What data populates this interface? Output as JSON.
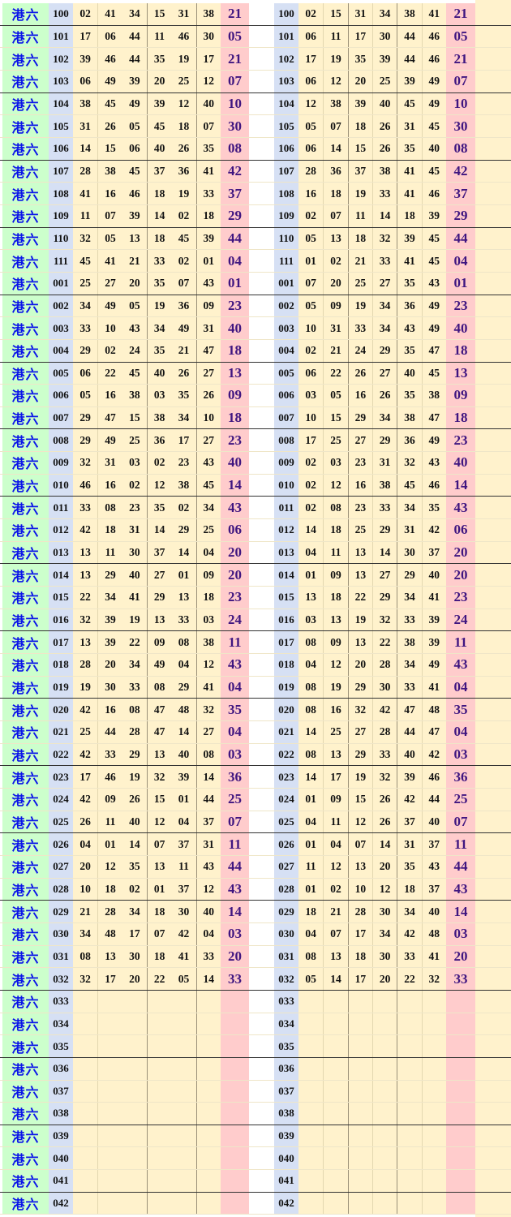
{
  "label": "港六",
  "colors": {
    "label_bg": "#ccffcc",
    "label_text": "#0a14e8",
    "issue_bg": "#d6e0f4",
    "numbers_bg": "#fff2cc",
    "special_bg": "#ffcccc",
    "special_text": "#3f1580"
  },
  "rows": [
    {
      "issue": "100",
      "nums": [
        "02",
        "41",
        "34",
        "15",
        "31",
        "38"
      ],
      "sorted": [
        "02",
        "15",
        "31",
        "34",
        "38",
        "41"
      ],
      "special": "21"
    },
    {
      "issue": "101",
      "nums": [
        "17",
        "06",
        "44",
        "11",
        "46",
        "30"
      ],
      "sorted": [
        "06",
        "11",
        "17",
        "30",
        "44",
        "46"
      ],
      "special": "05"
    },
    {
      "issue": "102",
      "nums": [
        "39",
        "46",
        "44",
        "35",
        "19",
        "17"
      ],
      "sorted": [
        "17",
        "19",
        "35",
        "39",
        "44",
        "46"
      ],
      "special": "21"
    },
    {
      "issue": "103",
      "nums": [
        "06",
        "49",
        "39",
        "20",
        "25",
        "12"
      ],
      "sorted": [
        "06",
        "12",
        "20",
        "25",
        "39",
        "49"
      ],
      "special": "07"
    },
    {
      "issue": "104",
      "nums": [
        "38",
        "45",
        "49",
        "39",
        "12",
        "40"
      ],
      "sorted": [
        "12",
        "38",
        "39",
        "40",
        "45",
        "49"
      ],
      "special": "10"
    },
    {
      "issue": "105",
      "nums": [
        "31",
        "26",
        "05",
        "45",
        "18",
        "07"
      ],
      "sorted": [
        "05",
        "07",
        "18",
        "26",
        "31",
        "45"
      ],
      "special": "30"
    },
    {
      "issue": "106",
      "nums": [
        "14",
        "15",
        "06",
        "40",
        "26",
        "35"
      ],
      "sorted": [
        "06",
        "14",
        "15",
        "26",
        "35",
        "40"
      ],
      "special": "08"
    },
    {
      "issue": "107",
      "nums": [
        "28",
        "38",
        "45",
        "37",
        "36",
        "41"
      ],
      "sorted": [
        "28",
        "36",
        "37",
        "38",
        "41",
        "45"
      ],
      "special": "42"
    },
    {
      "issue": "108",
      "nums": [
        "41",
        "16",
        "46",
        "18",
        "19",
        "33"
      ],
      "sorted": [
        "16",
        "18",
        "19",
        "33",
        "41",
        "46"
      ],
      "special": "37"
    },
    {
      "issue": "109",
      "nums": [
        "11",
        "07",
        "39",
        "14",
        "02",
        "18"
      ],
      "sorted": [
        "02",
        "07",
        "11",
        "14",
        "18",
        "39"
      ],
      "special": "29"
    },
    {
      "issue": "110",
      "nums": [
        "32",
        "05",
        "13",
        "18",
        "45",
        "39"
      ],
      "sorted": [
        "05",
        "13",
        "18",
        "32",
        "39",
        "45"
      ],
      "special": "44"
    },
    {
      "issue": "111",
      "nums": [
        "45",
        "41",
        "21",
        "33",
        "02",
        "01"
      ],
      "sorted": [
        "01",
        "02",
        "21",
        "33",
        "41",
        "45"
      ],
      "special": "04"
    },
    {
      "issue": "001",
      "nums": [
        "25",
        "27",
        "20",
        "35",
        "07",
        "43"
      ],
      "sorted": [
        "07",
        "20",
        "25",
        "27",
        "35",
        "43"
      ],
      "special": "01"
    },
    {
      "issue": "002",
      "nums": [
        "34",
        "49",
        "05",
        "19",
        "36",
        "09"
      ],
      "sorted": [
        "05",
        "09",
        "19",
        "34",
        "36",
        "49"
      ],
      "special": "23"
    },
    {
      "issue": "003",
      "nums": [
        "33",
        "10",
        "43",
        "34",
        "49",
        "31"
      ],
      "sorted": [
        "10",
        "31",
        "33",
        "34",
        "43",
        "49"
      ],
      "special": "40"
    },
    {
      "issue": "004",
      "nums": [
        "29",
        "02",
        "24",
        "35",
        "21",
        "47"
      ],
      "sorted": [
        "02",
        "21",
        "24",
        "29",
        "35",
        "47"
      ],
      "special": "18"
    },
    {
      "issue": "005",
      "nums": [
        "06",
        "22",
        "45",
        "40",
        "26",
        "27"
      ],
      "sorted": [
        "06",
        "22",
        "26",
        "27",
        "40",
        "45"
      ],
      "special": "13"
    },
    {
      "issue": "006",
      "nums": [
        "05",
        "16",
        "38",
        "03",
        "35",
        "26"
      ],
      "sorted": [
        "03",
        "05",
        "16",
        "26",
        "35",
        "38"
      ],
      "special": "09"
    },
    {
      "issue": "007",
      "nums": [
        "29",
        "47",
        "15",
        "38",
        "34",
        "10"
      ],
      "sorted": [
        "10",
        "15",
        "29",
        "34",
        "38",
        "47"
      ],
      "special": "18"
    },
    {
      "issue": "008",
      "nums": [
        "29",
        "49",
        "25",
        "36",
        "17",
        "27"
      ],
      "sorted": [
        "17",
        "25",
        "27",
        "29",
        "36",
        "49"
      ],
      "special": "23"
    },
    {
      "issue": "009",
      "nums": [
        "32",
        "31",
        "03",
        "02",
        "23",
        "43"
      ],
      "sorted": [
        "02",
        "03",
        "23",
        "31",
        "32",
        "43"
      ],
      "special": "40"
    },
    {
      "issue": "010",
      "nums": [
        "46",
        "16",
        "02",
        "12",
        "38",
        "45"
      ],
      "sorted": [
        "02",
        "12",
        "16",
        "38",
        "45",
        "46"
      ],
      "special": "14"
    },
    {
      "issue": "011",
      "nums": [
        "33",
        "08",
        "23",
        "35",
        "02",
        "34"
      ],
      "sorted": [
        "02",
        "08",
        "23",
        "33",
        "34",
        "35"
      ],
      "special": "43"
    },
    {
      "issue": "012",
      "nums": [
        "42",
        "18",
        "31",
        "14",
        "29",
        "25"
      ],
      "sorted": [
        "14",
        "18",
        "25",
        "29",
        "31",
        "42"
      ],
      "special": "06"
    },
    {
      "issue": "013",
      "nums": [
        "13",
        "11",
        "30",
        "37",
        "14",
        "04"
      ],
      "sorted": [
        "04",
        "11",
        "13",
        "14",
        "30",
        "37"
      ],
      "special": "20"
    },
    {
      "issue": "014",
      "nums": [
        "13",
        "29",
        "40",
        "27",
        "01",
        "09"
      ],
      "sorted": [
        "01",
        "09",
        "13",
        "27",
        "29",
        "40"
      ],
      "special": "20"
    },
    {
      "issue": "015",
      "nums": [
        "22",
        "34",
        "41",
        "29",
        "13",
        "18"
      ],
      "sorted": [
        "13",
        "18",
        "22",
        "29",
        "34",
        "41"
      ],
      "special": "23"
    },
    {
      "issue": "016",
      "nums": [
        "32",
        "39",
        "19",
        "13",
        "33",
        "03"
      ],
      "sorted": [
        "03",
        "13",
        "19",
        "32",
        "33",
        "39"
      ],
      "special": "24"
    },
    {
      "issue": "017",
      "nums": [
        "13",
        "39",
        "22",
        "09",
        "08",
        "38"
      ],
      "sorted": [
        "08",
        "09",
        "13",
        "22",
        "38",
        "39"
      ],
      "special": "11"
    },
    {
      "issue": "018",
      "nums": [
        "28",
        "20",
        "34",
        "49",
        "04",
        "12"
      ],
      "sorted": [
        "04",
        "12",
        "20",
        "28",
        "34",
        "49"
      ],
      "special": "43"
    },
    {
      "issue": "019",
      "nums": [
        "19",
        "30",
        "33",
        "08",
        "29",
        "41"
      ],
      "sorted": [
        "08",
        "19",
        "29",
        "30",
        "33",
        "41"
      ],
      "special": "04"
    },
    {
      "issue": "020",
      "nums": [
        "42",
        "16",
        "08",
        "47",
        "48",
        "32"
      ],
      "sorted": [
        "08",
        "16",
        "32",
        "42",
        "47",
        "48"
      ],
      "special": "35"
    },
    {
      "issue": "021",
      "nums": [
        "25",
        "44",
        "28",
        "47",
        "14",
        "27"
      ],
      "sorted": [
        "14",
        "25",
        "27",
        "28",
        "44",
        "47"
      ],
      "special": "04"
    },
    {
      "issue": "022",
      "nums": [
        "42",
        "33",
        "29",
        "13",
        "40",
        "08"
      ],
      "sorted": [
        "08",
        "13",
        "29",
        "33",
        "40",
        "42"
      ],
      "special": "03"
    },
    {
      "issue": "023",
      "nums": [
        "17",
        "46",
        "19",
        "32",
        "39",
        "14"
      ],
      "sorted": [
        "14",
        "17",
        "19",
        "32",
        "39",
        "46"
      ],
      "special": "36"
    },
    {
      "issue": "024",
      "nums": [
        "42",
        "09",
        "26",
        "15",
        "01",
        "44"
      ],
      "sorted": [
        "01",
        "09",
        "15",
        "26",
        "42",
        "44"
      ],
      "special": "25"
    },
    {
      "issue": "025",
      "nums": [
        "26",
        "11",
        "40",
        "12",
        "04",
        "37"
      ],
      "sorted": [
        "04",
        "11",
        "12",
        "26",
        "37",
        "40"
      ],
      "special": "07"
    },
    {
      "issue": "026",
      "nums": [
        "04",
        "01",
        "14",
        "07",
        "37",
        "31"
      ],
      "sorted": [
        "01",
        "04",
        "07",
        "14",
        "31",
        "37"
      ],
      "special": "11"
    },
    {
      "issue": "027",
      "nums": [
        "20",
        "12",
        "35",
        "13",
        "11",
        "43"
      ],
      "sorted": [
        "11",
        "12",
        "13",
        "20",
        "35",
        "43"
      ],
      "special": "44"
    },
    {
      "issue": "028",
      "nums": [
        "10",
        "18",
        "02",
        "01",
        "37",
        "12"
      ],
      "sorted": [
        "01",
        "02",
        "10",
        "12",
        "18",
        "37"
      ],
      "special": "43"
    },
    {
      "issue": "029",
      "nums": [
        "21",
        "28",
        "34",
        "18",
        "30",
        "40"
      ],
      "sorted": [
        "18",
        "21",
        "28",
        "30",
        "34",
        "40"
      ],
      "special": "14"
    },
    {
      "issue": "030",
      "nums": [
        "34",
        "48",
        "17",
        "07",
        "42",
        "04"
      ],
      "sorted": [
        "04",
        "07",
        "17",
        "34",
        "42",
        "48"
      ],
      "special": "03"
    },
    {
      "issue": "031",
      "nums": [
        "08",
        "13",
        "30",
        "18",
        "41",
        "33"
      ],
      "sorted": [
        "08",
        "13",
        "18",
        "30",
        "33",
        "41"
      ],
      "special": "20"
    },
    {
      "issue": "032",
      "nums": [
        "32",
        "17",
        "20",
        "22",
        "05",
        "14"
      ],
      "sorted": [
        "05",
        "14",
        "17",
        "20",
        "22",
        "32"
      ],
      "special": "33"
    },
    {
      "issue": "033",
      "nums": [],
      "sorted": [],
      "special": ""
    },
    {
      "issue": "034",
      "nums": [],
      "sorted": [],
      "special": ""
    },
    {
      "issue": "035",
      "nums": [],
      "sorted": [],
      "special": ""
    },
    {
      "issue": "036",
      "nums": [],
      "sorted": [],
      "special": ""
    },
    {
      "issue": "037",
      "nums": [],
      "sorted": [],
      "special": ""
    },
    {
      "issue": "038",
      "nums": [],
      "sorted": [],
      "special": ""
    },
    {
      "issue": "039",
      "nums": [],
      "sorted": [],
      "special": ""
    },
    {
      "issue": "040",
      "nums": [],
      "sorted": [],
      "special": ""
    },
    {
      "issue": "041",
      "nums": [],
      "sorted": [],
      "special": ""
    },
    {
      "issue": "042",
      "nums": [],
      "sorted": [],
      "special": ""
    }
  ]
}
